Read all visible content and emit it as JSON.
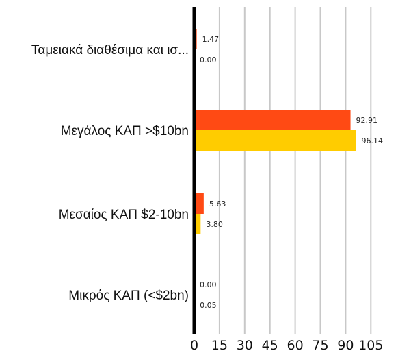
{
  "chart_data": {
    "type": "bar",
    "orientation": "horizontal",
    "categories": [
      "Ταμειακά διαθέσιμα και ισ...",
      "Μεγάλος ΚΑΠ >$10bn",
      "Μεσαίος ΚΑΠ $2-10bn",
      "Μικρός ΚΑΠ (<$2bn)"
    ],
    "series": [
      {
        "values": [
          1.47,
          92.91,
          5.63,
          0.0
        ],
        "labels": [
          "1.47",
          "92.91",
          "5.63",
          "0.00"
        ],
        "color": "#FF4A14"
      },
      {
        "values": [
          0.0,
          96.14,
          3.8,
          0.05
        ],
        "labels": [
          "0.00",
          "96.14",
          "3.80",
          "0.05"
        ],
        "color": "#FFCC00"
      }
    ],
    "xlim": [
      0,
      110
    ],
    "ticks": [
      0,
      15,
      30,
      45,
      60,
      75,
      90,
      105
    ],
    "tick_labels": [
      "0",
      "15",
      "30",
      "45",
      "60",
      "75",
      "90",
      "105"
    ],
    "grid": true,
    "legend": "none",
    "title": "",
    "xlabel": "",
    "ylabel": ""
  }
}
